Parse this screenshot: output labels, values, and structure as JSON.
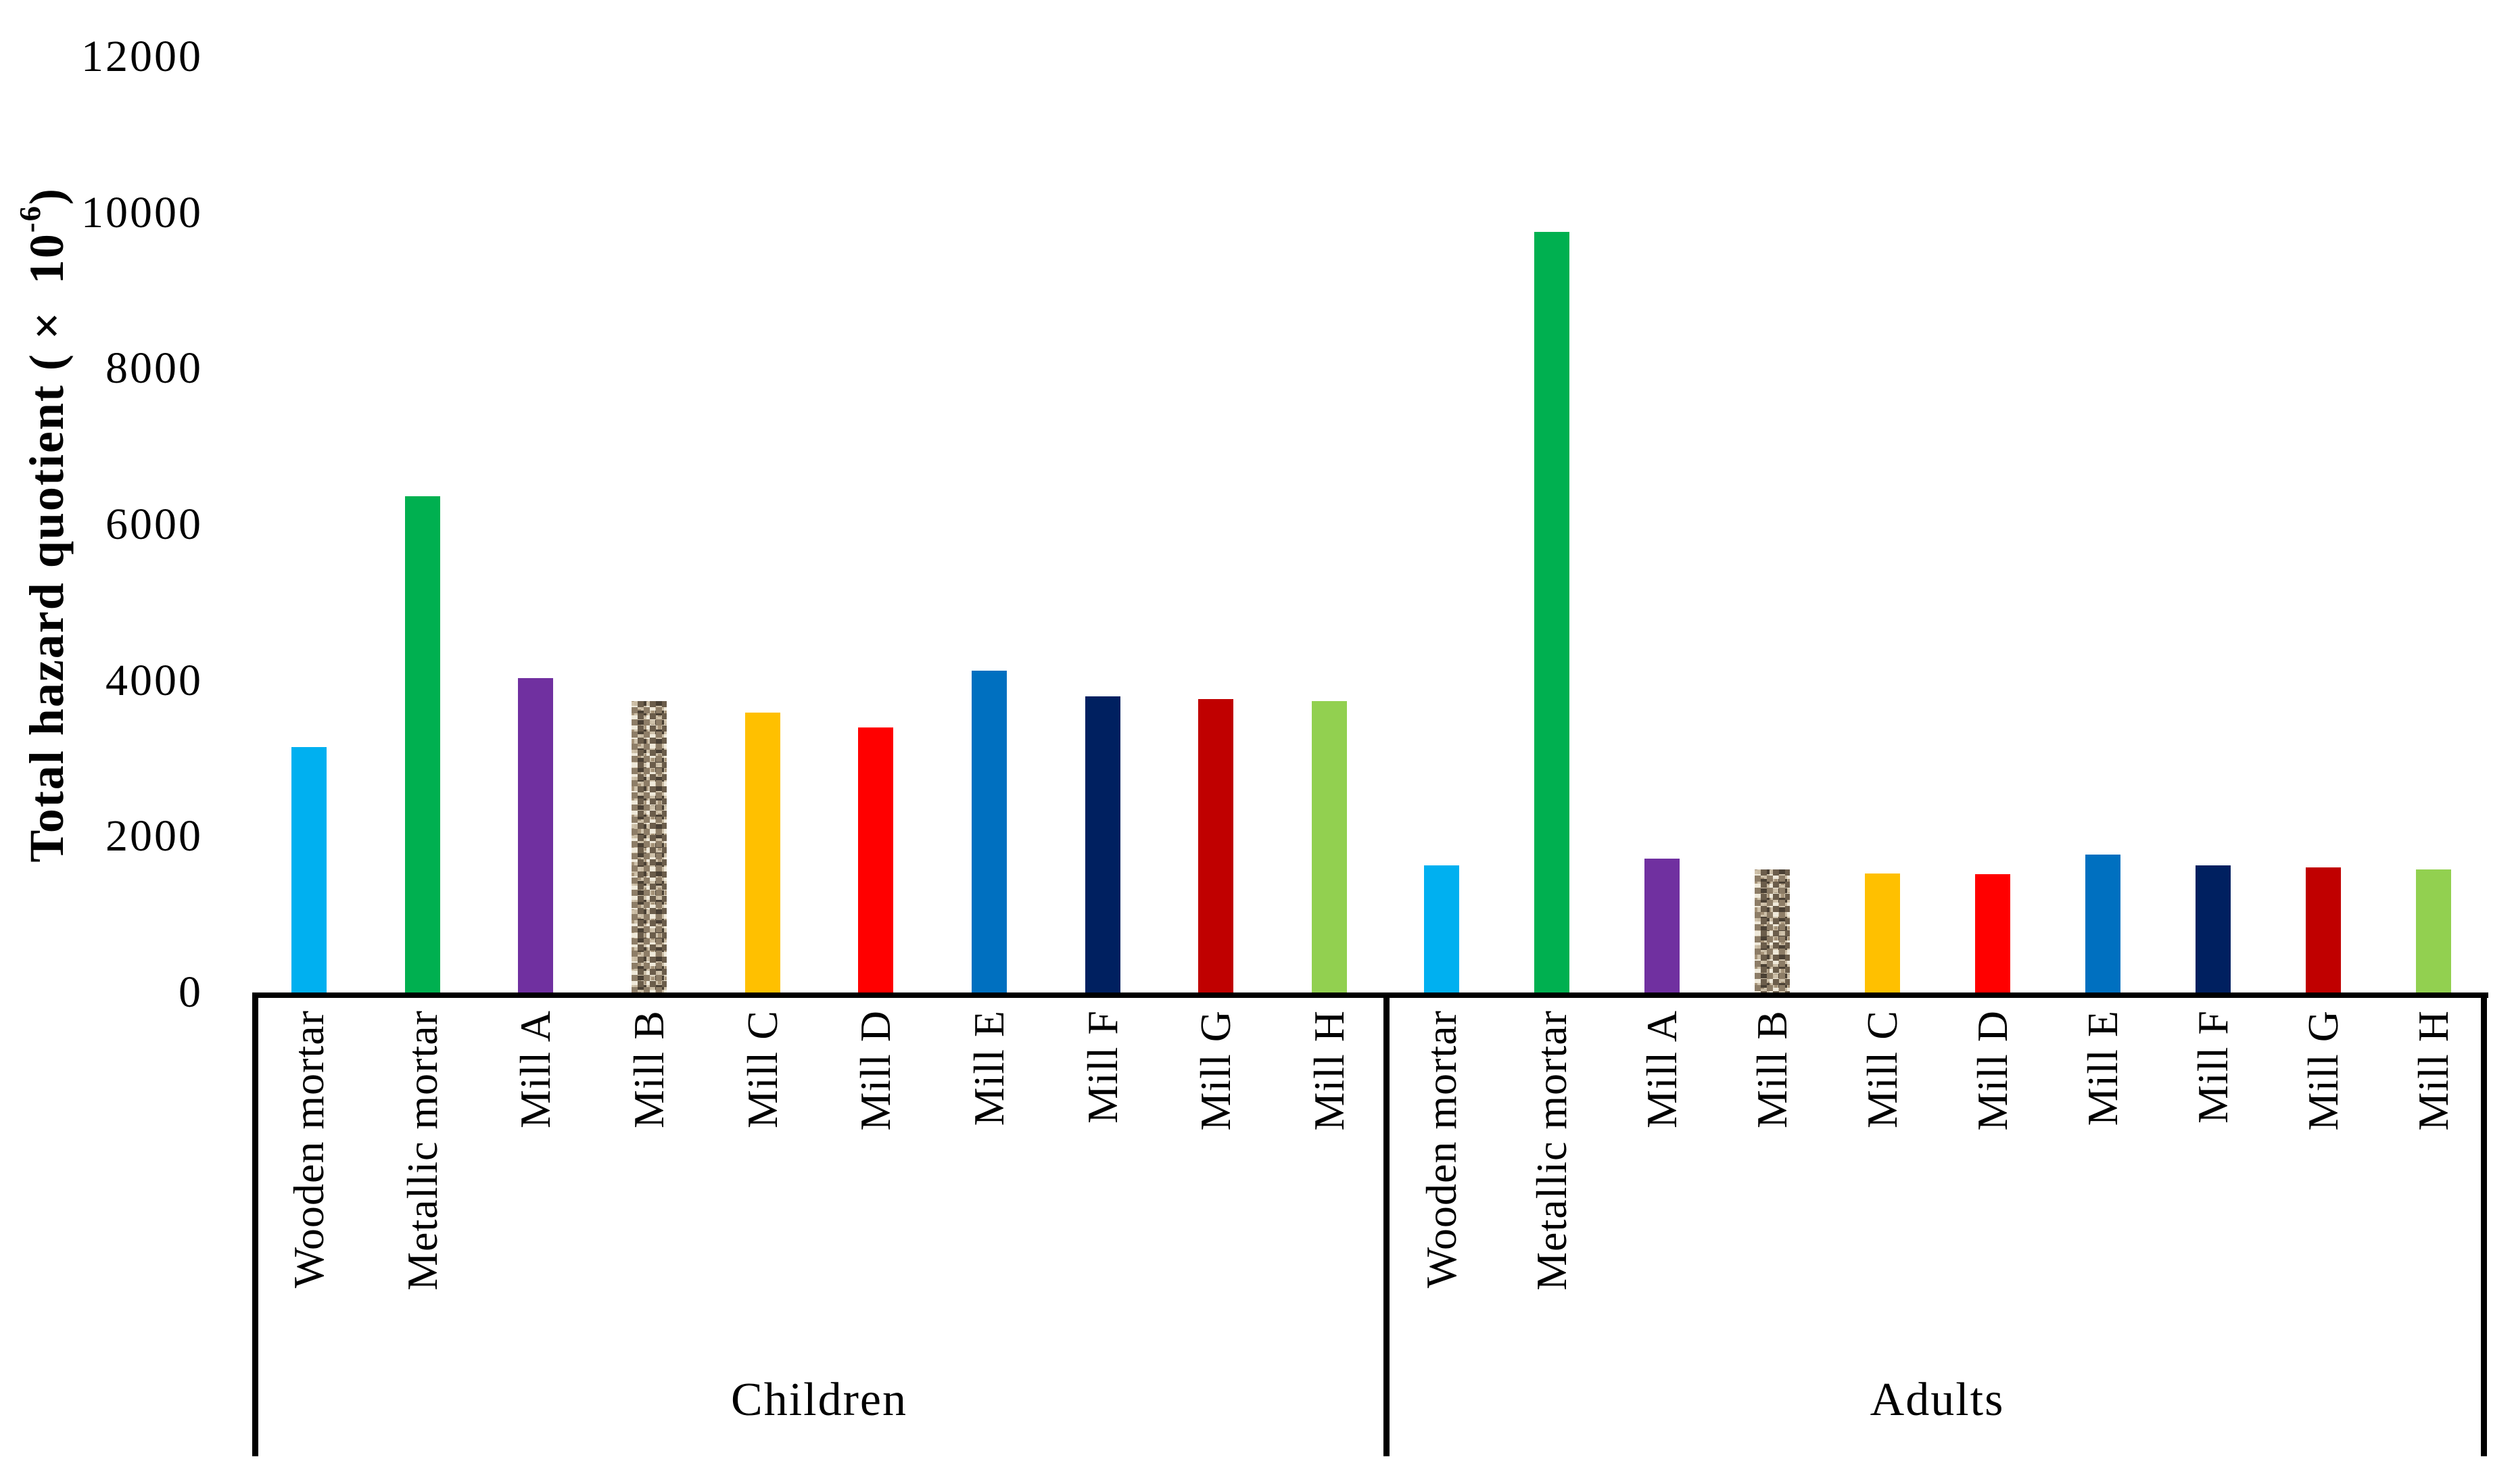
{
  "figure": {
    "background": "#ffffff",
    "y_axis_title_main": "Total hazard quotient (× 10",
    "y_axis_title_sup": "-6",
    "y_axis_title_close": ")"
  },
  "chart_data": {
    "type": "bar",
    "title": "",
    "xlabel": "",
    "ylabel": "Total hazard quotient (× 10^-6)",
    "ylim": [
      0,
      12000
    ],
    "yticks": [
      0,
      2000,
      4000,
      6000,
      8000,
      10000,
      12000
    ],
    "grid": "off",
    "legend": "none",
    "categories": [
      "Wooden mortar",
      "Metallic mortar",
      "Mill A",
      "Mill B",
      "Mill C",
      "Mill D",
      "Mill E",
      "Mill F",
      "Mill G",
      "Mill H"
    ],
    "bar_colors": [
      "#00B0F0",
      "#00B050",
      "#7030A0",
      "granite-texture",
      "#FFC000",
      "#FF0000",
      "#0070C0",
      "#002060",
      "#C00000",
      "#92D050"
    ],
    "groups": [
      {
        "label": "Children",
        "values": [
          3150,
          6360,
          4030,
          3740,
          3590,
          3400,
          4130,
          3800,
          3760,
          3740
        ]
      },
      {
        "label": "Adults",
        "values": [
          1630,
          9750,
          1720,
          1580,
          1530,
          1520,
          1770,
          1630,
          1600,
          1580
        ]
      }
    ]
  }
}
